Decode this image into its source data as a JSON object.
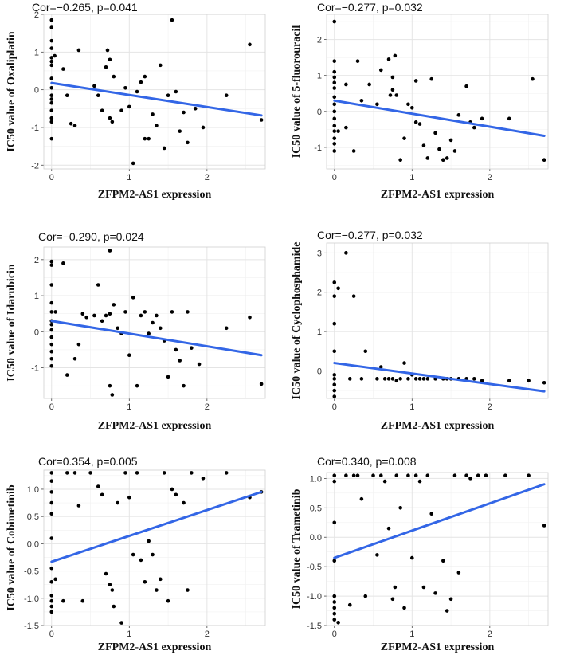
{
  "figure_name": "IC50 correlation panels",
  "chart_data": [
    {
      "type": "scatter",
      "title": "Cor=−0.265, p=0.041",
      "xlabel": "ZFPM2-AS1 expression",
      "ylabel": "IC50 value of Oxaliplatin",
      "xlim": [
        -0.1,
        2.75
      ],
      "ylim": [
        -2.1,
        2.0
      ],
      "xticks": [
        0,
        1,
        2
      ],
      "yticks": [
        -2,
        -1,
        0,
        1,
        2
      ],
      "trend": {
        "x": [
          0,
          2.7
        ],
        "y": [
          0.18,
          -0.68
        ]
      },
      "points": [
        [
          0,
          1.85
        ],
        [
          0,
          1.65
        ],
        [
          0,
          1.3
        ],
        [
          0,
          1.1
        ],
        [
          0,
          0.85
        ],
        [
          0,
          0.75
        ],
        [
          0,
          0.65
        ],
        [
          0,
          0.3
        ],
        [
          0,
          0.05
        ],
        [
          0,
          -0.15
        ],
        [
          0,
          -0.25
        ],
        [
          0,
          -0.35
        ],
        [
          0,
          -0.55
        ],
        [
          0,
          -0.75
        ],
        [
          0,
          -0.85
        ],
        [
          0,
          -1.3
        ],
        [
          0.04,
          0.9
        ],
        [
          0.15,
          0.55
        ],
        [
          0.2,
          -0.15
        ],
        [
          0.25,
          -0.9
        ],
        [
          0.3,
          -0.95
        ],
        [
          0.35,
          1.05
        ],
        [
          0.55,
          0.1
        ],
        [
          0.6,
          -0.15
        ],
        [
          0.65,
          -0.55
        ],
        [
          0.7,
          0.6
        ],
        [
          0.72,
          1.05
        ],
        [
          0.75,
          0.8
        ],
        [
          0.75,
          -0.75
        ],
        [
          0.78,
          -0.85
        ],
        [
          0.8,
          0.35
        ],
        [
          0.9,
          -0.55
        ],
        [
          0.95,
          0.05
        ],
        [
          1.0,
          -0.45
        ],
        [
          1.05,
          -1.95
        ],
        [
          1.1,
          -0.05
        ],
        [
          1.15,
          0.2
        ],
        [
          1.2,
          0.35
        ],
        [
          1.2,
          -1.3
        ],
        [
          1.25,
          -1.3
        ],
        [
          1.3,
          -0.65
        ],
        [
          1.35,
          -0.95
        ],
        [
          1.4,
          0.65
        ],
        [
          1.45,
          -1.55
        ],
        [
          1.5,
          -0.15
        ],
        [
          1.55,
          1.85
        ],
        [
          1.6,
          -0.05
        ],
        [
          1.65,
          -1.1
        ],
        [
          1.7,
          -0.6
        ],
        [
          1.75,
          -1.4
        ],
        [
          1.85,
          -0.5
        ],
        [
          1.95,
          -1.0
        ],
        [
          2.25,
          -0.15
        ],
        [
          2.55,
          1.2
        ],
        [
          2.7,
          -0.8
        ]
      ]
    },
    {
      "type": "scatter",
      "title": "Cor=−0.277, p=0.032",
      "xlabel": "ZFPM2-AS1 expression",
      "ylabel": "IC50 value of 5-fluorouracil",
      "xlim": [
        -0.1,
        2.75
      ],
      "ylim": [
        -1.6,
        2.7
      ],
      "xticks": [
        0,
        1,
        2
      ],
      "yticks": [
        -1,
        0,
        1,
        2
      ],
      "trend": {
        "x": [
          0,
          2.7
        ],
        "y": [
          0.3,
          -0.68
        ]
      },
      "points": [
        [
          0,
          2.5
        ],
        [
          0,
          1.4
        ],
        [
          0,
          1.1
        ],
        [
          0,
          0.95
        ],
        [
          0,
          0.8
        ],
        [
          0,
          0.65
        ],
        [
          0,
          0.4
        ],
        [
          0,
          0.2
        ],
        [
          0,
          0
        ],
        [
          0,
          -0.2
        ],
        [
          0,
          -0.4
        ],
        [
          0,
          -0.55
        ],
        [
          0,
          -0.75
        ],
        [
          0,
          -0.9
        ],
        [
          0,
          -1.1
        ],
        [
          0.05,
          -0.55
        ],
        [
          0.15,
          0.75
        ],
        [
          0.15,
          -0.45
        ],
        [
          0.25,
          -1.1
        ],
        [
          0.3,
          1.4
        ],
        [
          0.35,
          0.3
        ],
        [
          0.45,
          0.75
        ],
        [
          0.55,
          0.2
        ],
        [
          0.6,
          1.15
        ],
        [
          0.7,
          1.45
        ],
        [
          0.72,
          0.45
        ],
        [
          0.75,
          0.95
        ],
        [
          0.75,
          0.6
        ],
        [
          0.78,
          1.55
        ],
        [
          0.8,
          0.45
        ],
        [
          0.85,
          -1.35
        ],
        [
          0.9,
          -0.75
        ],
        [
          0.95,
          0.2
        ],
        [
          1.0,
          0.1
        ],
        [
          1.05,
          0.85
        ],
        [
          1.05,
          -0.3
        ],
        [
          1.1,
          -0.35
        ],
        [
          1.15,
          -0.95
        ],
        [
          1.2,
          -1.3
        ],
        [
          1.25,
          0.9
        ],
        [
          1.3,
          -0.6
        ],
        [
          1.35,
          -1.05
        ],
        [
          1.4,
          -1.35
        ],
        [
          1.45,
          -1.3
        ],
        [
          1.5,
          -0.8
        ],
        [
          1.55,
          -1.1
        ],
        [
          1.6,
          -0.1
        ],
        [
          1.7,
          0.7
        ],
        [
          1.75,
          -0.3
        ],
        [
          1.8,
          -0.45
        ],
        [
          1.9,
          -0.2
        ],
        [
          2.25,
          -0.2
        ],
        [
          2.55,
          0.9
        ],
        [
          2.7,
          -1.35
        ]
      ]
    },
    {
      "type": "scatter",
      "title": "Cor=−0.290, p=0.024",
      "xlabel": "ZFPM2-AS1 expression",
      "ylabel": "IC50 value of Idarubicin",
      "xlim": [
        -0.1,
        2.75
      ],
      "ylim": [
        -1.85,
        2.35
      ],
      "xticks": [
        0,
        1,
        2
      ],
      "yticks": [
        -1,
        0,
        1,
        2
      ],
      "trend": {
        "x": [
          0,
          2.7
        ],
        "y": [
          0.3,
          -0.65
        ]
      },
      "points": [
        [
          0,
          1.95
        ],
        [
          0,
          1.85
        ],
        [
          0,
          1.3
        ],
        [
          0,
          0.8
        ],
        [
          0,
          0.55
        ],
        [
          0,
          0.3
        ],
        [
          0,
          0.2
        ],
        [
          0,
          0.05
        ],
        [
          0,
          -0.15
        ],
        [
          0,
          -0.35
        ],
        [
          0,
          -0.55
        ],
        [
          0,
          -0.75
        ],
        [
          0,
          -0.95
        ],
        [
          0.05,
          0.55
        ],
        [
          0.15,
          1.9
        ],
        [
          0.2,
          -1.2
        ],
        [
          0.3,
          -0.75
        ],
        [
          0.35,
          -0.35
        ],
        [
          0.4,
          0.5
        ],
        [
          0.45,
          0.4
        ],
        [
          0.55,
          0.45
        ],
        [
          0.6,
          1.3
        ],
        [
          0.65,
          0.3
        ],
        [
          0.7,
          0.45
        ],
        [
          0.75,
          2.25
        ],
        [
          0.75,
          0.5
        ],
        [
          0.75,
          -1.5
        ],
        [
          0.78,
          -1.75
        ],
        [
          0.8,
          0.75
        ],
        [
          0.85,
          0.1
        ],
        [
          0.9,
          -0.05
        ],
        [
          0.95,
          0.55
        ],
        [
          1.0,
          -0.65
        ],
        [
          1.05,
          0.95
        ],
        [
          1.1,
          -1.5
        ],
        [
          1.15,
          0.45
        ],
        [
          1.2,
          0.55
        ],
        [
          1.25,
          -0.05
        ],
        [
          1.3,
          0.25
        ],
        [
          1.35,
          0.45
        ],
        [
          1.4,
          0.1
        ],
        [
          1.45,
          -0.25
        ],
        [
          1.5,
          -1.25
        ],
        [
          1.55,
          0.55
        ],
        [
          1.6,
          -0.5
        ],
        [
          1.65,
          -0.8
        ],
        [
          1.7,
          -1.5
        ],
        [
          1.75,
          0.55
        ],
        [
          1.8,
          -0.45
        ],
        [
          1.9,
          -0.9
        ],
        [
          2.25,
          0.1
        ],
        [
          2.55,
          0.4
        ],
        [
          2.7,
          -1.45
        ]
      ]
    },
    {
      "type": "scatter",
      "title": "Cor=−0.277, p=0.032",
      "xlabel": "ZFPM2-AS1 expression",
      "ylabel": "IC50 value of Cyclophosphamide",
      "xlim": [
        -0.1,
        2.75
      ],
      "ylim": [
        -0.7,
        3.25
      ],
      "xticks": [
        0,
        1,
        2
      ],
      "yticks": [
        0,
        1,
        2,
        3
      ],
      "trend": {
        "x": [
          0,
          2.7
        ],
        "y": [
          0.2,
          -0.52
        ]
      },
      "points": [
        [
          0,
          2.25
        ],
        [
          0,
          1.9
        ],
        [
          0,
          1.2
        ],
        [
          0,
          0.5
        ],
        [
          0,
          -0.1
        ],
        [
          0,
          -0.2
        ],
        [
          0,
          -0.35
        ],
        [
          0,
          -0.5
        ],
        [
          0,
          -0.65
        ],
        [
          0.05,
          2.1
        ],
        [
          0.15,
          3.0
        ],
        [
          0.2,
          -0.2
        ],
        [
          0.25,
          1.9
        ],
        [
          0.35,
          -0.2
        ],
        [
          0.4,
          0.5
        ],
        [
          0.55,
          -0.2
        ],
        [
          0.6,
          0.1
        ],
        [
          0.65,
          -0.2
        ],
        [
          0.7,
          -0.2
        ],
        [
          0.75,
          -0.2
        ],
        [
          0.8,
          -0.25
        ],
        [
          0.85,
          -0.2
        ],
        [
          0.9,
          0.2
        ],
        [
          0.95,
          -0.2
        ],
        [
          1.0,
          -0.1
        ],
        [
          1.05,
          -0.2
        ],
        [
          1.1,
          -0.2
        ],
        [
          1.15,
          -0.2
        ],
        [
          1.2,
          -0.2
        ],
        [
          1.3,
          -0.2
        ],
        [
          1.4,
          -0.2
        ],
        [
          1.45,
          -0.2
        ],
        [
          1.5,
          -0.2
        ],
        [
          1.6,
          -0.2
        ],
        [
          1.7,
          -0.2
        ],
        [
          1.8,
          -0.2
        ],
        [
          1.9,
          -0.25
        ],
        [
          2.25,
          -0.25
        ],
        [
          2.5,
          -0.25
        ],
        [
          2.7,
          -0.3
        ]
      ]
    },
    {
      "type": "scatter",
      "title": "Cor=0.354, p=0.005",
      "xlabel": "ZFPM2-AS1 expression",
      "ylabel": "IC50 value of Cobimetinib",
      "xlim": [
        -0.1,
        2.75
      ],
      "ylim": [
        -1.5,
        1.35
      ],
      "xticks": [
        0,
        1,
        2
      ],
      "yticks": [
        -1.5,
        -1.0,
        -0.5,
        0.0,
        0.5,
        1.0
      ],
      "trend": {
        "x": [
          0,
          2.7
        ],
        "y": [
          -0.33,
          0.95
        ]
      },
      "points": [
        [
          0,
          1.3
        ],
        [
          0,
          1.15
        ],
        [
          0,
          0.95
        ],
        [
          0,
          0.75
        ],
        [
          0,
          0.55
        ],
        [
          0,
          0.1
        ],
        [
          0,
          -0.45
        ],
        [
          0,
          -0.7
        ],
        [
          0,
          -0.95
        ],
        [
          0,
          -1.05
        ],
        [
          0,
          -1.15
        ],
        [
          0,
          -1.25
        ],
        [
          0.05,
          -0.65
        ],
        [
          0.15,
          -1.05
        ],
        [
          0.2,
          1.3
        ],
        [
          0.3,
          1.3
        ],
        [
          0.35,
          0.7
        ],
        [
          0.4,
          -1.05
        ],
        [
          0.5,
          1.3
        ],
        [
          0.6,
          1.05
        ],
        [
          0.65,
          0.9
        ],
        [
          0.7,
          -0.55
        ],
        [
          0.75,
          -0.75
        ],
        [
          0.78,
          -0.85
        ],
        [
          0.8,
          -1.15
        ],
        [
          0.85,
          0.75
        ],
        [
          0.9,
          -1.45
        ],
        [
          0.95,
          1.3
        ],
        [
          1.0,
          0.85
        ],
        [
          1.05,
          -0.2
        ],
        [
          1.1,
          1.3
        ],
        [
          1.15,
          -0.3
        ],
        [
          1.2,
          -0.7
        ],
        [
          1.25,
          0.05
        ],
        [
          1.3,
          -0.2
        ],
        [
          1.35,
          -0.85
        ],
        [
          1.4,
          -0.65
        ],
        [
          1.45,
          1.3
        ],
        [
          1.5,
          -1.05
        ],
        [
          1.55,
          1.0
        ],
        [
          1.6,
          0.9
        ],
        [
          1.7,
          0.75
        ],
        [
          1.75,
          -0.85
        ],
        [
          1.8,
          1.3
        ],
        [
          1.95,
          1.2
        ],
        [
          2.25,
          1.3
        ],
        [
          2.55,
          0.85
        ],
        [
          2.7,
          0.95
        ]
      ]
    },
    {
      "type": "scatter",
      "title": "Cor=0.340, p=0.008",
      "xlabel": "ZFPM2-AS1 expression",
      "ylabel": "IC50 value of Trametinib",
      "xlim": [
        -0.1,
        2.75
      ],
      "ylim": [
        -1.5,
        1.1
      ],
      "xticks": [
        0,
        1,
        2
      ],
      "yticks": [
        -1.5,
        -1.0,
        -0.5,
        0.0,
        0.5,
        1.0
      ],
      "trend": {
        "x": [
          0,
          2.7
        ],
        "y": [
          -0.35,
          0.9
        ]
      },
      "points": [
        [
          0,
          1.05
        ],
        [
          0,
          0.95
        ],
        [
          0,
          0.25
        ],
        [
          0,
          -0.4
        ],
        [
          0,
          -1.0
        ],
        [
          0,
          -1.1
        ],
        [
          0,
          -1.2
        ],
        [
          0,
          -1.3
        ],
        [
          0,
          -1.4
        ],
        [
          0.05,
          -1.45
        ],
        [
          0.15,
          1.05
        ],
        [
          0.2,
          -1.15
        ],
        [
          0.25,
          1.05
        ],
        [
          0.3,
          1.05
        ],
        [
          0.35,
          0.65
        ],
        [
          0.4,
          -1.0
        ],
        [
          0.5,
          1.05
        ],
        [
          0.55,
          -0.3
        ],
        [
          0.6,
          1.05
        ],
        [
          0.65,
          0.95
        ],
        [
          0.7,
          0.15
        ],
        [
          0.75,
          -1.05
        ],
        [
          0.78,
          -0.85
        ],
        [
          0.8,
          1.05
        ],
        [
          0.85,
          0.5
        ],
        [
          0.9,
          -1.2
        ],
        [
          0.95,
          1.05
        ],
        [
          1.0,
          -0.35
        ],
        [
          1.05,
          1.05
        ],
        [
          1.1,
          0.95
        ],
        [
          1.15,
          -0.85
        ],
        [
          1.2,
          1.05
        ],
        [
          1.25,
          0.4
        ],
        [
          1.3,
          -0.95
        ],
        [
          1.4,
          -0.4
        ],
        [
          1.45,
          -1.25
        ],
        [
          1.5,
          -1.05
        ],
        [
          1.55,
          1.05
        ],
        [
          1.6,
          -0.6
        ],
        [
          1.7,
          1.05
        ],
        [
          1.75,
          1.0
        ],
        [
          1.85,
          1.05
        ],
        [
          1.95,
          1.05
        ],
        [
          2.2,
          1.05
        ],
        [
          2.5,
          1.05
        ],
        [
          2.7,
          0.2
        ]
      ]
    }
  ]
}
